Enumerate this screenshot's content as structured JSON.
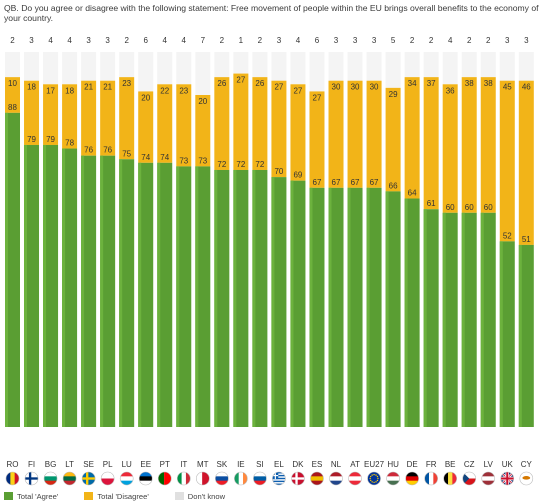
{
  "question": "QB. Do you agree or disagree with the following statement: Free movement of people within the EU brings overall benefits to the economy of your country.",
  "colors": {
    "agree": "#5a9e33",
    "agree_light": "#6cb23d",
    "disagree": "#f2b418",
    "dont_know": "#e0e0e0",
    "value_label": "#333333"
  },
  "chart_data": {
    "type": "bar",
    "stacked": true,
    "ylim": [
      0,
      100
    ],
    "grid": false,
    "legend_position": "bottom-left",
    "categories": [
      "RO",
      "FI",
      "BG",
      "LT",
      "SE",
      "PL",
      "LU",
      "EE",
      "PT",
      "IT",
      "MT",
      "SK",
      "IE",
      "SI",
      "EL",
      "DK",
      "ES",
      "NL",
      "AT",
      "EU27",
      "HU",
      "DE",
      "FR",
      "BE",
      "CZ",
      "LV",
      "UK",
      "CY"
    ],
    "series": [
      {
        "name": "Total 'Agree'",
        "values": [
          88,
          79,
          79,
          78,
          76,
          76,
          75,
          74,
          74,
          73,
          73,
          72,
          72,
          72,
          70,
          69,
          67,
          67,
          67,
          67,
          66,
          64,
          61,
          60,
          60,
          60,
          52,
          51
        ]
      },
      {
        "name": "Total 'Disagree'",
        "values": [
          10,
          18,
          17,
          18,
          21,
          21,
          23,
          20,
          22,
          23,
          20,
          26,
          27,
          26,
          27,
          27,
          27,
          30,
          30,
          30,
          29,
          34,
          37,
          36,
          38,
          38,
          45,
          46
        ]
      },
      {
        "name": "Don't know",
        "values": [
          2,
          3,
          4,
          4,
          3,
          3,
          2,
          6,
          4,
          4,
          7,
          2,
          1,
          2,
          3,
          4,
          6,
          3,
          3,
          3,
          5,
          2,
          2,
          4,
          2,
          2,
          3,
          3
        ]
      }
    ]
  },
  "legend": [
    {
      "label": "Total 'Agree'",
      "color": "#5a9e33"
    },
    {
      "label": "Total 'Disagree'",
      "color": "#f2b418"
    },
    {
      "label": "Don't know",
      "color": "#e0e0e0"
    }
  ],
  "flags": [
    {
      "country": "RO",
      "type": "v3",
      "colors": [
        "#002b7f",
        "#fcd116",
        "#ce1126"
      ]
    },
    {
      "country": "FI",
      "type": "cross",
      "colors": [
        "#ffffff",
        "#003580"
      ]
    },
    {
      "country": "BG",
      "type": "h3",
      "colors": [
        "#ffffff",
        "#00966e",
        "#d62612"
      ]
    },
    {
      "country": "LT",
      "type": "h3",
      "colors": [
        "#fdb913",
        "#006a44",
        "#c1272d"
      ]
    },
    {
      "country": "SE",
      "type": "cross",
      "colors": [
        "#006aa7",
        "#fecc00"
      ]
    },
    {
      "country": "PL",
      "type": "h2",
      "colors": [
        "#ffffff",
        "#dc143c"
      ]
    },
    {
      "country": "LU",
      "type": "h3",
      "colors": [
        "#ed2939",
        "#ffffff",
        "#00a1de"
      ]
    },
    {
      "country": "EE",
      "type": "h3",
      "colors": [
        "#0072ce",
        "#000000",
        "#ffffff"
      ]
    },
    {
      "country": "PT",
      "type": "v2",
      "colors": [
        "#006600",
        "#ff0000"
      ]
    },
    {
      "country": "IT",
      "type": "v3",
      "colors": [
        "#009246",
        "#ffffff",
        "#ce2b37"
      ]
    },
    {
      "country": "MT",
      "type": "v2",
      "colors": [
        "#ffffff",
        "#cf142b"
      ]
    },
    {
      "country": "SK",
      "type": "h3",
      "colors": [
        "#ffffff",
        "#0b4ea2",
        "#ee1c25"
      ]
    },
    {
      "country": "IE",
      "type": "v3",
      "colors": [
        "#169b62",
        "#ffffff",
        "#ff883e"
      ]
    },
    {
      "country": "SI",
      "type": "h3",
      "colors": [
        "#ffffff",
        "#005da4",
        "#ed1c24"
      ]
    },
    {
      "country": "EL",
      "type": "stripes",
      "colors": [
        "#0d5eaf",
        "#ffffff"
      ]
    },
    {
      "country": "DK",
      "type": "cross",
      "colors": [
        "#c8102e",
        "#ffffff"
      ]
    },
    {
      "country": "ES",
      "type": "h3",
      "colors": [
        "#aa151b",
        "#f1bf00",
        "#aa151b"
      ]
    },
    {
      "country": "NL",
      "type": "h3",
      "colors": [
        "#ae1c28",
        "#ffffff",
        "#21468b"
      ]
    },
    {
      "country": "AT",
      "type": "h3",
      "colors": [
        "#ed2939",
        "#ffffff",
        "#ed2939"
      ]
    },
    {
      "country": "EU27",
      "type": "eu",
      "colors": [
        "#003399",
        "#ffcc00"
      ]
    },
    {
      "country": "HU",
      "type": "h3",
      "colors": [
        "#ce2939",
        "#ffffff",
        "#477050"
      ]
    },
    {
      "country": "DE",
      "type": "h3",
      "colors": [
        "#000000",
        "#dd0000",
        "#ffce00"
      ]
    },
    {
      "country": "FR",
      "type": "v3",
      "colors": [
        "#0055a4",
        "#ffffff",
        "#ef4135"
      ]
    },
    {
      "country": "BE",
      "type": "v3",
      "colors": [
        "#000000",
        "#fae042",
        "#ed2939"
      ]
    },
    {
      "country": "CZ",
      "type": "h2",
      "colors": [
        "#ffffff",
        "#d7141a",
        "#11457e"
      ]
    },
    {
      "country": "LV",
      "type": "h3",
      "colors": [
        "#9e3039",
        "#ffffff",
        "#9e3039"
      ]
    },
    {
      "country": "UK",
      "type": "uk",
      "colors": [
        "#012169",
        "#ffffff",
        "#c8102e"
      ]
    },
    {
      "country": "CY",
      "type": "plain",
      "colors": [
        "#ffffff",
        "#d57800"
      ]
    }
  ]
}
